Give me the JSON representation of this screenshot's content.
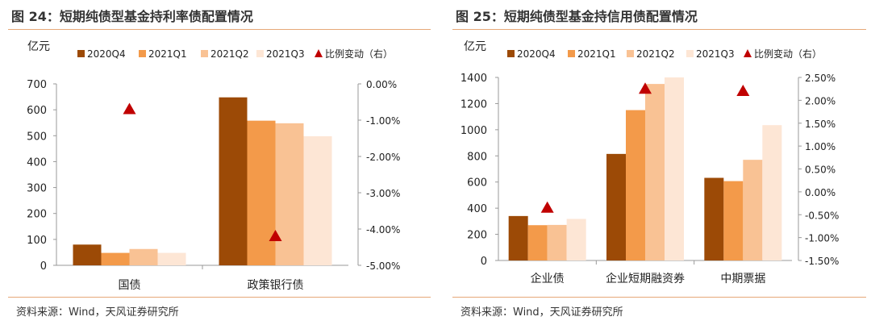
{
  "panels": [
    {
      "title": "图 24：短期纯债型基金持利率债配置情况",
      "source": "资料来源：Wind，天风证券研究所",
      "chart_data": {
        "type": "bar",
        "ylabel": "亿元",
        "categories": [
          "国债",
          "政策银行债"
        ],
        "series": [
          {
            "name": "2020Q4",
            "values": [
              80,
              648
            ],
            "color": "#9c4a06"
          },
          {
            "name": "2021Q1",
            "values": [
              48,
              558
            ],
            "color": "#f39a4a"
          },
          {
            "name": "2021Q2",
            "values": [
              63,
              548
            ],
            "color": "#f9c294"
          },
          {
            "name": "2021Q3",
            "values": [
              48,
              498
            ],
            "color": "#fde6d5"
          }
        ],
        "ratio_series": {
          "name": "比例变动（右）",
          "values": [
            -0.7,
            -4.2
          ],
          "color": "#c00000"
        },
        "ylim": [
          0,
          700
        ],
        "yticks": [
          "700",
          "600",
          "500",
          "400",
          "300",
          "200",
          "100",
          "0"
        ],
        "y2lim": [
          -5.0,
          0.0
        ],
        "y2ticks": [
          "0.00%",
          "-1.00%",
          "-2.00%",
          "-3.00%",
          "-4.00%",
          "-5.00%"
        ],
        "legend": "top"
      }
    },
    {
      "title": "图 25：短期纯债型基金持信用债配置情况",
      "source": "资料来源：Wind，天风证券研究所",
      "chart_data": {
        "type": "bar",
        "ylabel": "亿元",
        "categories": [
          "企业债",
          "企业短期融资券",
          "中期票据"
        ],
        "series": [
          {
            "name": "2020Q4",
            "values": [
              340,
              815,
              632
            ],
            "color": "#9c4a06"
          },
          {
            "name": "2021Q1",
            "values": [
              270,
              1150,
              607
            ],
            "color": "#f39a4a"
          },
          {
            "name": "2021Q2",
            "values": [
              272,
              1350,
              770
            ],
            "color": "#f9c294"
          },
          {
            "name": "2021Q3",
            "values": [
              318,
              1400,
              1035
            ],
            "color": "#fde6d5"
          }
        ],
        "ratio_series": {
          "name": "比例变动（右）",
          "values": [
            -0.35,
            2.25,
            2.2
          ],
          "color": "#c00000"
        },
        "ylim": [
          0,
          1400
        ],
        "yticks": [
          "1400",
          "1200",
          "1000",
          "800",
          "600",
          "400",
          "200",
          "0"
        ],
        "y2lim": [
          -1.5,
          2.5
        ],
        "y2ticks": [
          "2.50%",
          "2.00%",
          "1.50%",
          "1.00%",
          "0.50%",
          "0.00%",
          "-0.50%",
          "-1.00%",
          "-1.50%"
        ],
        "legend": "top"
      }
    }
  ]
}
